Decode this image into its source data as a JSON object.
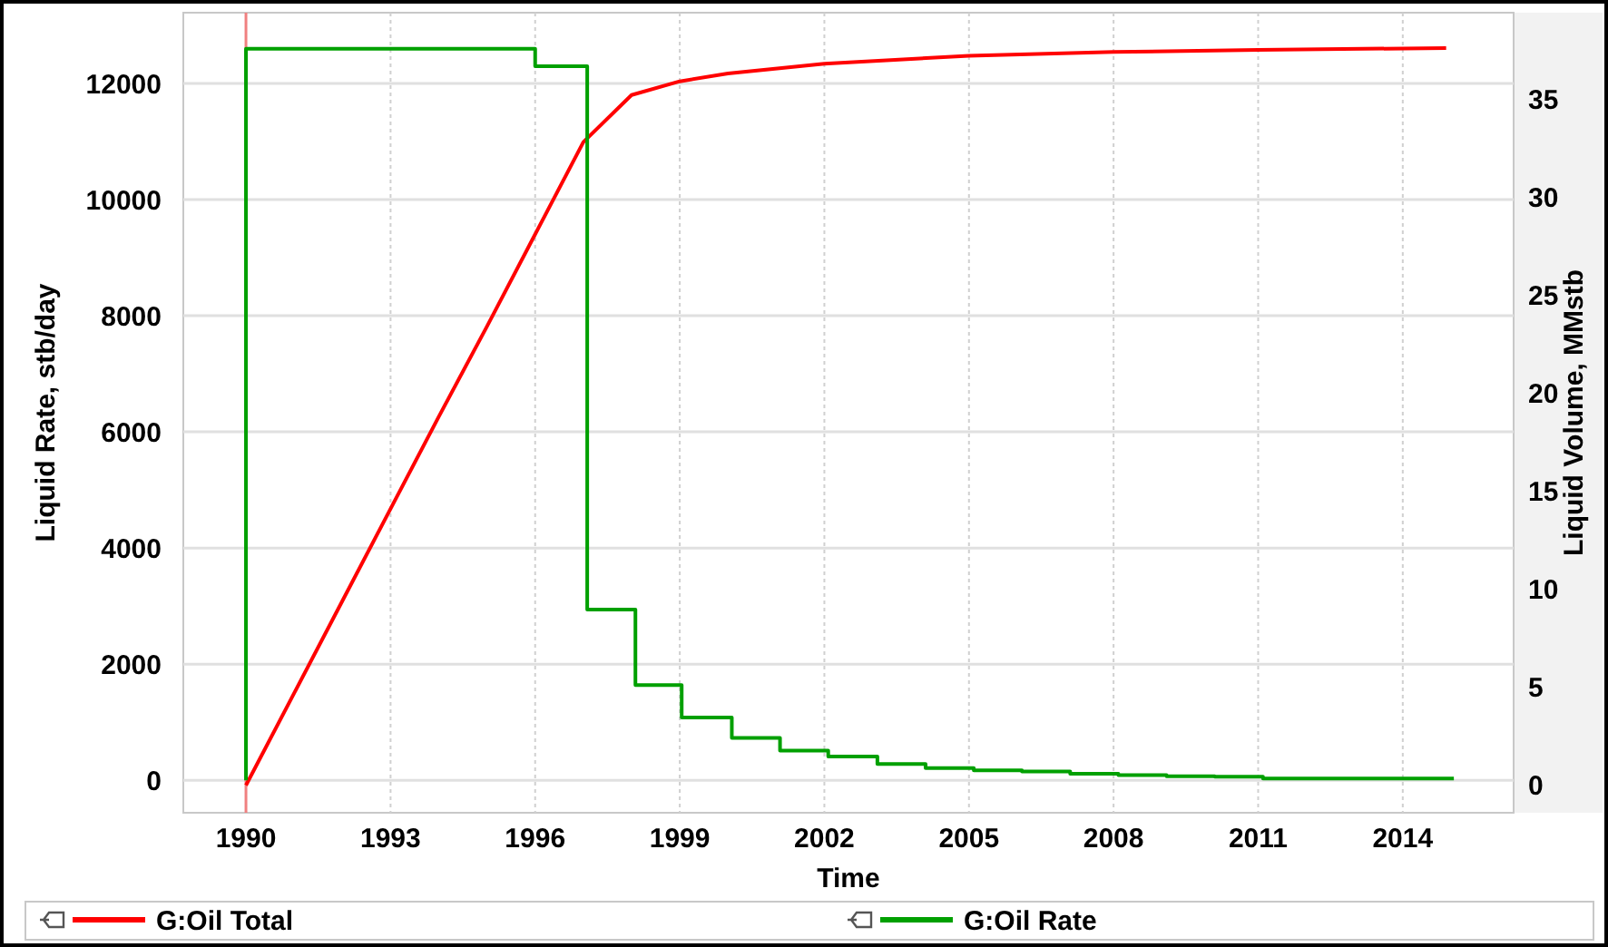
{
  "chart_data": {
    "type": "line",
    "xlabel": "Time",
    "ylabel": "Liquid Rate, stb/day",
    "y2label": "Liquid Volume, MMstb",
    "xlim": [
      1988.7,
      2016.3
    ],
    "xticks": [
      1990,
      1993,
      1996,
      1999,
      2002,
      2005,
      2008,
      2011,
      2014
    ],
    "ylim": [
      -560,
      13220
    ],
    "yticks": [
      0,
      2000,
      4000,
      6000,
      8000,
      10000,
      12000
    ],
    "y2lim": [
      -1.4,
      39.4
    ],
    "y2ticks": [
      0,
      5,
      10,
      15,
      20,
      25,
      30,
      35
    ],
    "grid": true,
    "legend": "bottom",
    "ref_lines": [
      {
        "axis": "x",
        "value": 1990,
        "color": "#f08080"
      }
    ],
    "series": [
      {
        "name": "G:Oil Total",
        "color": "#ff0000",
        "axis": "y2",
        "x": [
          1990,
          1991,
          1992,
          1993,
          1994,
          1995,
          1996,
          1997,
          1998,
          1999,
          2000,
          2002,
          2005,
          2008,
          2011,
          2014.9
        ],
        "values": [
          0,
          4.7,
          9.4,
          14.1,
          18.8,
          23.4,
          28.1,
          32.8,
          35.2,
          35.9,
          36.3,
          36.8,
          37.2,
          37.4,
          37.5,
          37.6
        ]
      },
      {
        "name": "G:Oil Rate",
        "type": "step",
        "color": "#00a000",
        "x": [
          1990,
          1990,
          1996,
          1997.08,
          1998.08,
          1999.04,
          2000.08,
          2001.08,
          2002.08,
          2003.1,
          2004.1,
          2005.1,
          2006.1,
          2007.1,
          2008.1,
          2009.1,
          2010.1,
          2011.1,
          2015.06
        ],
        "values": [
          0,
          12600,
          12300,
          2940,
          1640,
          1080,
          730,
          510,
          410,
          280,
          210,
          170,
          150,
          110,
          90,
          70,
          60,
          30,
          30
        ]
      }
    ]
  }
}
